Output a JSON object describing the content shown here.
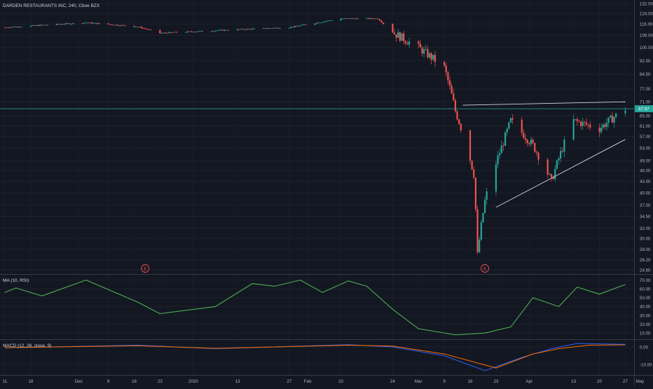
{
  "header": {
    "symbol_line": "DARDEN RESTAURANTS INC, 240, Cboe BZX"
  },
  "rsi_pane": {
    "label": "MA (10, RSI)"
  },
  "macd_pane": {
    "label": "MACD (12, 26, close, 9)"
  },
  "colors": {
    "background": "#131722",
    "up": "#26a69a",
    "down": "#ef5350",
    "rsi_line": "#4caf50",
    "macd_line": "#2962ff",
    "signal_line": "#ff6d00",
    "trendline": "#d1d4dc",
    "last_price_line": "#26a69a",
    "earnings_marker": "#ef5350"
  },
  "chart_data": [
    {
      "type": "candlestick",
      "title": "DARDEN RESTAURANTS INC, 240, Cboe BZX",
      "y_axis_scale": "log",
      "y_ticks": [
        "132.00",
        "124.00",
        "116.00",
        "108.00",
        "100.00",
        "92.00",
        "84.50",
        "77.00",
        "71.00",
        "65.00",
        "61.00",
        "57.00",
        "53.00",
        "49.00",
        "46.00",
        "43.00",
        "40.00",
        "37.00",
        "34.50",
        "32.00",
        "30.00",
        "28.00",
        "26.20",
        "24.60"
      ],
      "x_ticks": [
        "11",
        "18",
        "Dec",
        "9",
        "16",
        "23",
        "2020",
        "13",
        "27",
        "Feb",
        "10",
        "24",
        "Mar",
        "9",
        "16",
        "23",
        "Apr",
        "13",
        "20",
        "27",
        "May"
      ],
      "last_price_label": "67.97",
      "earnings_markers": [
        "E",
        "E"
      ],
      "approx_price_path": [
        {
          "date": "2019-11-11",
          "close": 113.5
        },
        {
          "date": "2019-12-03",
          "close": 117
        },
        {
          "date": "2019-12-17",
          "close": 114
        },
        {
          "date": "2019-12-23",
          "close": 109.5
        },
        {
          "date": "2020-01-13",
          "close": 112
        },
        {
          "date": "2020-01-27",
          "close": 113.5
        },
        {
          "date": "2020-02-10",
          "close": 120
        },
        {
          "date": "2020-02-20",
          "close": 120
        },
        {
          "date": "2020-02-24",
          "close": 110
        },
        {
          "date": "2020-03-02",
          "close": 100
        },
        {
          "date": "2020-03-09",
          "close": 88
        },
        {
          "date": "2020-03-12",
          "close": 67
        },
        {
          "date": "2020-03-17",
          "close": 45
        },
        {
          "date": "2020-03-18",
          "close": 27
        },
        {
          "date": "2020-03-20",
          "close": 38
        },
        {
          "date": "2020-03-25",
          "close": 55
        },
        {
          "date": "2020-03-27",
          "close": 63
        },
        {
          "date": "2020-04-02",
          "close": 54
        },
        {
          "date": "2020-04-07",
          "close": 43
        },
        {
          "date": "2020-04-13",
          "close": 63
        },
        {
          "date": "2020-04-20",
          "close": 60
        },
        {
          "date": "2020-04-27",
          "close": 67.97
        }
      ],
      "trendlines": [
        {
          "from": {
            "date": "2020-03-14",
            "price": 69.5
          },
          "to": {
            "date": "2020-04-27",
            "price": 71
          }
        },
        {
          "from": {
            "date": "2020-03-23",
            "price": 36.5
          },
          "to": {
            "date": "2020-04-27",
            "price": 56
          }
        }
      ]
    },
    {
      "type": "line",
      "title": "MA (10, RSI)",
      "y_ticks": [
        "70.00",
        "60.00",
        "50.00",
        "40.00",
        "30.00",
        "20.00",
        "10.00"
      ],
      "series": [
        {
          "name": "",
          "values": [
            {
              "date": "2019-11-11",
              "value": 56
            },
            {
              "date": "2019-11-14",
              "value": 61
            },
            {
              "date": "2019-11-21",
              "value": 52
            },
            {
              "date": "2019-12-03",
              "value": 70
            },
            {
              "date": "2019-12-17",
              "value": 45
            },
            {
              "date": "2019-12-23",
              "value": 32
            },
            {
              "date": "2020-01-07",
              "value": 40
            },
            {
              "date": "2020-01-17",
              "value": 66
            },
            {
              "date": "2020-01-23",
              "value": 63
            },
            {
              "date": "2020-01-30",
              "value": 70
            },
            {
              "date": "2020-02-05",
              "value": 56
            },
            {
              "date": "2020-02-12",
              "value": 69
            },
            {
              "date": "2020-02-17",
              "value": 63
            },
            {
              "date": "2020-02-24",
              "value": 37
            },
            {
              "date": "2020-03-02",
              "value": 15
            },
            {
              "date": "2020-03-12",
              "value": 8
            },
            {
              "date": "2020-03-20",
              "value": 10
            },
            {
              "date": "2020-03-27",
              "value": 17
            },
            {
              "date": "2020-04-02",
              "value": 50
            },
            {
              "date": "2020-04-09",
              "value": 40
            },
            {
              "date": "2020-04-14",
              "value": 62
            },
            {
              "date": "2020-04-20",
              "value": 54
            },
            {
              "date": "2020-04-27",
              "value": 65
            }
          ]
        }
      ]
    },
    {
      "type": "line",
      "title": "MACD (12, 26, close, 9)",
      "y_ticks": [
        "0.00",
        "-10.00"
      ],
      "series": [
        {
          "name": "",
          "values": [
            {
              "date": "2019-11-11",
              "value": -0.5
            },
            {
              "date": "2019-12-17",
              "value": 1
            },
            {
              "date": "2020-01-07",
              "value": -1
            },
            {
              "date": "2020-02-12",
              "value": 1.3
            },
            {
              "date": "2020-02-24",
              "value": 0
            },
            {
              "date": "2020-03-09",
              "value": -5
            },
            {
              "date": "2020-03-20",
              "value": -13.5
            },
            {
              "date": "2020-03-30",
              "value": -6
            },
            {
              "date": "2020-04-07",
              "value": -1
            },
            {
              "date": "2020-04-14",
              "value": 2
            },
            {
              "date": "2020-04-27",
              "value": 1.5
            }
          ]
        },
        {
          "name": "",
          "values": [
            {
              "date": "2019-11-11",
              "value": -0.4
            },
            {
              "date": "2019-12-17",
              "value": 0.7
            },
            {
              "date": "2020-01-07",
              "value": -0.8
            },
            {
              "date": "2020-02-12",
              "value": 1
            },
            {
              "date": "2020-02-24",
              "value": 0.5
            },
            {
              "date": "2020-03-09",
              "value": -4
            },
            {
              "date": "2020-03-23",
              "value": -12
            },
            {
              "date": "2020-04-02",
              "value": -4
            },
            {
              "date": "2020-04-09",
              "value": -1
            },
            {
              "date": "2020-04-17",
              "value": 1
            },
            {
              "date": "2020-04-27",
              "value": 1.2
            }
          ]
        }
      ]
    }
  ]
}
